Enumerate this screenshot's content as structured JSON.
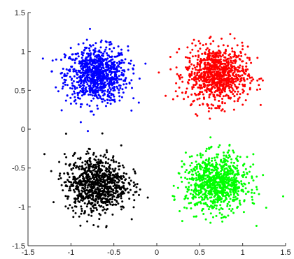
{
  "chart_data": {
    "type": "scatter",
    "title": "",
    "xlabel": "",
    "ylabel": "",
    "xlim": [
      -1.5,
      1.5
    ],
    "ylim": [
      -1.5,
      1.5
    ],
    "grid": false,
    "legend": "none",
    "x_ticks": [
      -1.5,
      -1,
      -0.5,
      0,
      0.5,
      1,
      1.5
    ],
    "x_tick_labels": [
      "-1.5",
      "-1",
      "-0.5",
      "0",
      "0.5",
      "1",
      "1.5"
    ],
    "y_ticks": [
      -1.5,
      -1,
      -0.5,
      0,
      0.5,
      1,
      1.5
    ],
    "y_tick_labels": [
      "-1.5",
      "-1",
      "-0.5",
      "0",
      "0.5",
      "1",
      "1.5"
    ],
    "series": [
      {
        "color": "#0000ff",
        "center": [
          -0.7,
          0.7
        ],
        "spread": 0.18,
        "count": 900
      },
      {
        "color": "#ff0000",
        "center": [
          0.7,
          0.7
        ],
        "spread": 0.18,
        "count": 900
      },
      {
        "color": "#000000",
        "center": [
          -0.7,
          -0.7
        ],
        "spread": 0.18,
        "count": 900
      },
      {
        "color": "#00ff00",
        "center": [
          0.7,
          -0.7
        ],
        "spread": 0.18,
        "count": 900
      }
    ]
  }
}
